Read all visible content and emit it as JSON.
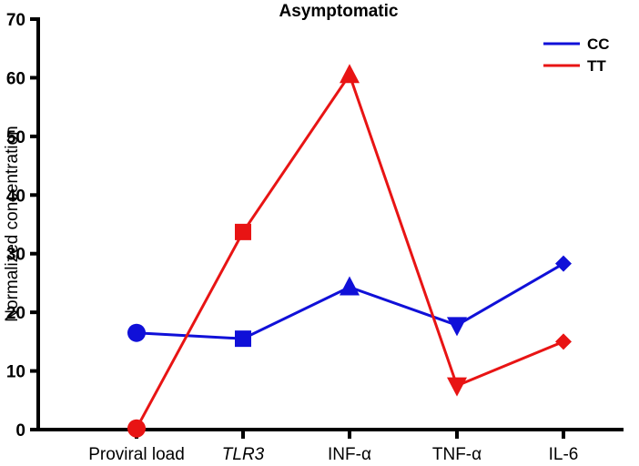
{
  "chart_data": {
    "type": "line",
    "title": "Asymptomatic",
    "xlabel": "",
    "ylabel": "Normalized concentration",
    "ylim": [
      0,
      70
    ],
    "yticks": [
      "0",
      "10",
      "20",
      "30",
      "40",
      "50",
      "60",
      "70"
    ],
    "categories": [
      "Proviral load",
      "TLR3",
      "INF-α",
      "TNF-α",
      "IL-6"
    ],
    "legend_position": "top-right",
    "series": [
      {
        "name": "CC",
        "color": "#1010d8",
        "values": [
          16.5,
          15.5,
          24.3,
          17.8,
          28.3
        ],
        "markers": [
          "circle",
          "square",
          "triangle-up",
          "triangle-down",
          "diamond"
        ]
      },
      {
        "name": "TT",
        "color": "#e81414",
        "values": [
          0.2,
          33.7,
          60.5,
          7.5,
          15.0
        ],
        "markers": [
          "circle",
          "square",
          "triangle-up",
          "triangle-down",
          "diamond"
        ]
      }
    ]
  }
}
